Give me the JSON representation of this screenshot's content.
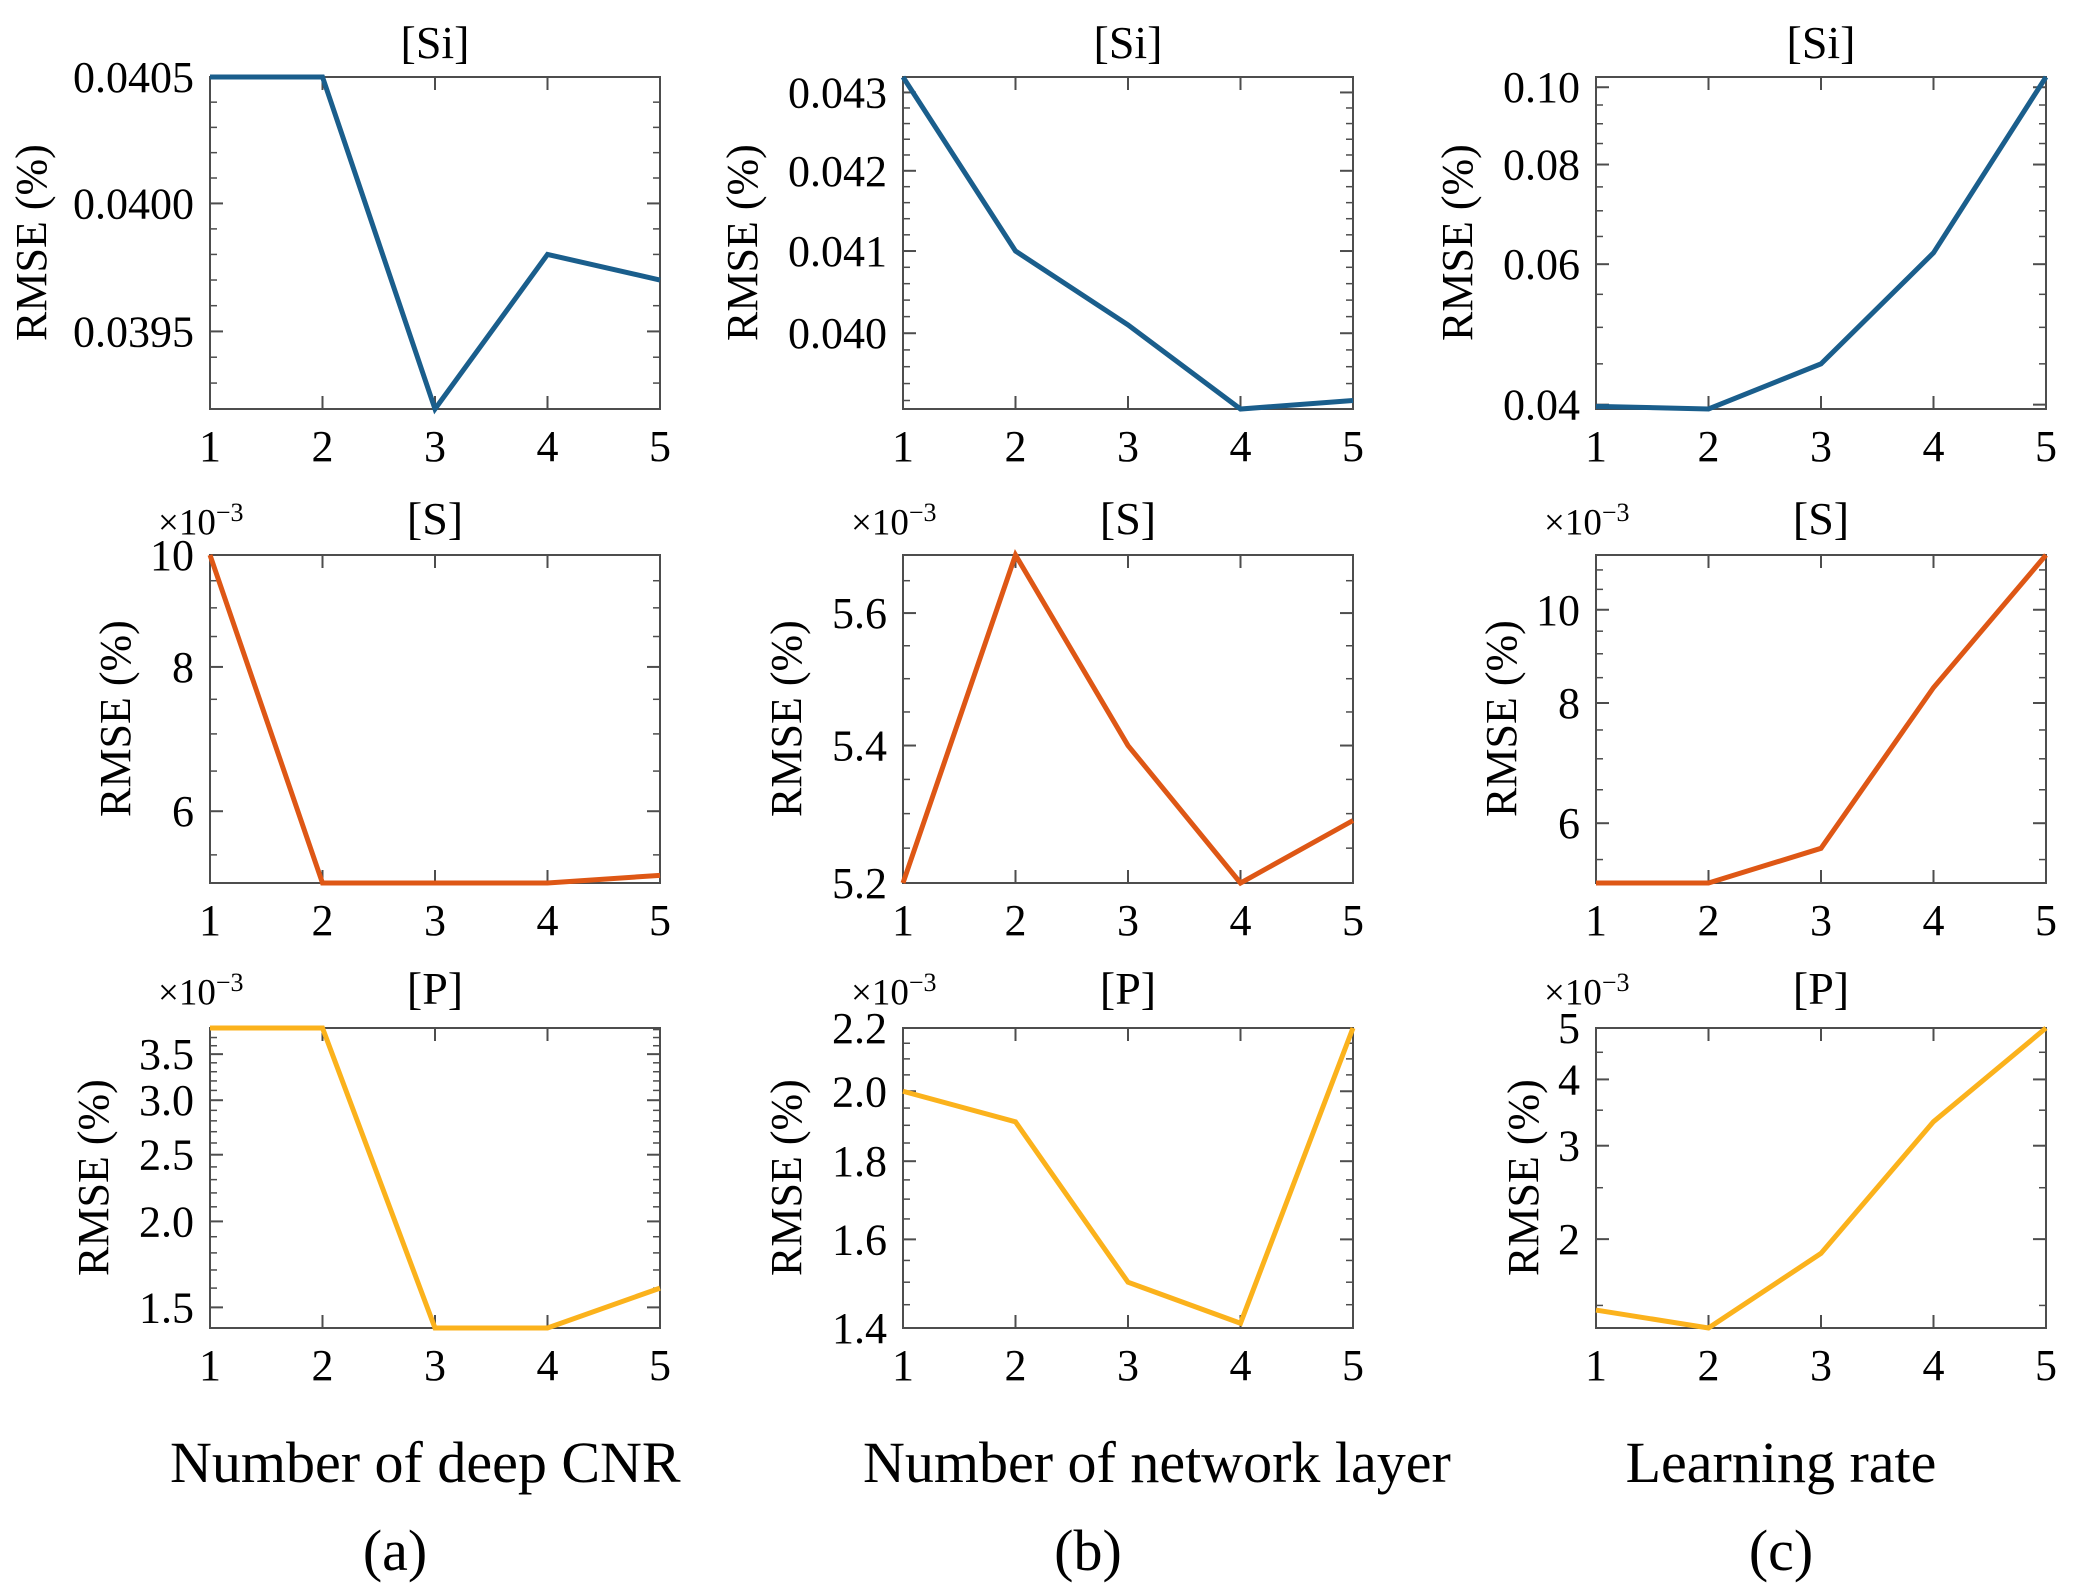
{
  "figure": {
    "ylabel": "RMSE (%)",
    "exponent": {
      "base": "×10",
      "exp": "−3"
    },
    "xticklabels": [
      "1",
      "2",
      "3",
      "4",
      "5"
    ],
    "columns": [
      {
        "xlabel": "Number of deep CNR",
        "panel": "(a)"
      },
      {
        "xlabel": "Number of network layer",
        "panel": "(b)"
      },
      {
        "xlabel": "Learning rate",
        "panel": "(c)"
      }
    ],
    "colors": {
      "blue": "#1A5E8C",
      "orange": "#DE5715",
      "yellow": "#FBB21C"
    },
    "axis_color": "#4d4d4d"
  },
  "chart_data": [
    {
      "type": "line",
      "row": 0,
      "col": 0,
      "title": "[Si]",
      "series_color": "blue",
      "yscale": "log",
      "exponent": false,
      "x": [
        1,
        2,
        3,
        4,
        5
      ],
      "y": [
        0.0405,
        0.0405,
        0.0392,
        0.0398,
        0.0397
      ],
      "ylim": [
        0.0392,
        0.0405
      ],
      "yticks": [
        0.0395,
        0.04,
        0.0405
      ],
      "ytick_labels": [
        "0.0395",
        "0.0400",
        "0.0405"
      ],
      "yminor": [
        0.0393,
        0.0394,
        0.0396,
        0.0397,
        0.0398,
        0.0399,
        0.0401,
        0.0402,
        0.0403,
        0.0404
      ]
    },
    {
      "type": "line",
      "row": 0,
      "col": 1,
      "title": "[Si]",
      "series_color": "blue",
      "yscale": "log",
      "exponent": false,
      "x": [
        1,
        2,
        3,
        4,
        5
      ],
      "y": [
        0.0432,
        0.041,
        0.0401,
        0.0391,
        0.0392
      ],
      "ylim": [
        0.0391,
        0.0432
      ],
      "yticks": [
        0.04,
        0.041,
        0.042,
        0.043
      ],
      "ytick_labels": [
        "0.040",
        "0.041",
        "0.042",
        "0.043"
      ],
      "yminor": [
        0.0392,
        0.0394,
        0.0396,
        0.0398,
        0.0402,
        0.0404,
        0.0406,
        0.0408,
        0.0412,
        0.0414,
        0.0416,
        0.0418,
        0.0422,
        0.0424,
        0.0426,
        0.0428
      ]
    },
    {
      "type": "line",
      "row": 0,
      "col": 2,
      "title": "[Si]",
      "series_color": "blue",
      "yscale": "log",
      "exponent": false,
      "x": [
        1,
        2,
        3,
        4,
        5
      ],
      "y": [
        0.0398,
        0.0395,
        0.045,
        0.062,
        0.103
      ],
      "ylim": [
        0.0395,
        0.103
      ],
      "yticks": [
        0.04,
        0.06,
        0.08,
        0.1
      ],
      "ytick_labels": [
        "0.04",
        "0.06",
        "0.08",
        "0.10"
      ],
      "yminor": [
        0.045,
        0.05,
        0.055,
        0.065,
        0.07,
        0.075,
        0.085,
        0.09,
        0.095
      ]
    },
    {
      "type": "line",
      "row": 1,
      "col": 0,
      "title": "[S]",
      "series_color": "orange",
      "yscale": "log",
      "exponent": true,
      "x": [
        1,
        2,
        3,
        4,
        5
      ],
      "y": [
        10,
        5.2,
        5.2,
        5.2,
        5.28
      ],
      "ylim": [
        5.2,
        10
      ],
      "yticks": [
        6,
        8,
        10
      ],
      "ytick_labels": [
        "6",
        "8",
        "10"
      ],
      "yminor": [
        5.5,
        6.5,
        7,
        7.5,
        8.5,
        9,
        9.5
      ]
    },
    {
      "type": "line",
      "row": 1,
      "col": 1,
      "title": "[S]",
      "series_color": "orange",
      "yscale": "log",
      "exponent": true,
      "x": [
        1,
        2,
        3,
        4,
        5
      ],
      "y": [
        5.2,
        5.69,
        5.4,
        5.2,
        5.29
      ],
      "ylim": [
        5.2,
        5.69
      ],
      "yticks": [
        5.2,
        5.4,
        5.6
      ],
      "ytick_labels": [
        "5.2",
        "5.4",
        "5.6"
      ],
      "yminor": [
        5.25,
        5.3,
        5.35,
        5.45,
        5.5,
        5.55,
        5.65
      ]
    },
    {
      "type": "line",
      "row": 1,
      "col": 2,
      "title": "[S]",
      "series_color": "orange",
      "yscale": "log",
      "exponent": true,
      "x": [
        1,
        2,
        3,
        4,
        5
      ],
      "y": [
        5.2,
        5.2,
        5.65,
        8.3,
        11.4
      ],
      "ylim": [
        5.2,
        11.4
      ],
      "yticks": [
        6,
        8,
        10
      ],
      "ytick_labels": [
        "6",
        "8",
        "10"
      ],
      "yminor": [
        5.5,
        6.5,
        7,
        7.5,
        8.5,
        9,
        9.5,
        10.5,
        11
      ]
    },
    {
      "type": "line",
      "row": 2,
      "col": 0,
      "title": "[P]",
      "series_color": "yellow",
      "yscale": "log",
      "exponent": true,
      "x": [
        1,
        2,
        3,
        4,
        5
      ],
      "y": [
        3.82,
        3.82,
        1.4,
        1.4,
        1.6
      ],
      "ylim": [
        1.4,
        3.82
      ],
      "yticks": [
        1.5,
        2,
        2.5,
        3,
        3.5
      ],
      "ytick_labels": [
        "1.5",
        "2.0",
        "2.5",
        "3.0",
        "3.5"
      ],
      "yminor": [
        1.6,
        1.7,
        1.8,
        1.9,
        2.1,
        2.2,
        2.3,
        2.4,
        2.6,
        2.7,
        2.8,
        2.9,
        3.1,
        3.2,
        3.3,
        3.4,
        3.6,
        3.7,
        3.8
      ]
    },
    {
      "type": "line",
      "row": 2,
      "col": 1,
      "title": "[P]",
      "series_color": "yellow",
      "yscale": "log",
      "exponent": true,
      "x": [
        1,
        2,
        3,
        4,
        5
      ],
      "y": [
        2,
        1.91,
        1.5,
        1.41,
        2.2
      ],
      "ylim": [
        1.4,
        2.2
      ],
      "yticks": [
        1.4,
        1.6,
        1.8,
        2,
        2.2
      ],
      "ytick_labels": [
        "1.4",
        "1.6",
        "1.8",
        "2.0",
        "2.2"
      ],
      "yminor": [
        1.45,
        1.5,
        1.55,
        1.65,
        1.7,
        1.75,
        1.85,
        1.9,
        1.95,
        2.05,
        2.1,
        2.15
      ]
    },
    {
      "type": "line",
      "row": 2,
      "col": 2,
      "title": "[P]",
      "series_color": "yellow",
      "yscale": "log",
      "exponent": true,
      "x": [
        1,
        2,
        3,
        4,
        5
      ],
      "y": [
        1.47,
        1.36,
        1.88,
        3.33,
        5
      ],
      "ylim": [
        1.36,
        5
      ],
      "yticks": [
        2,
        3,
        4,
        5
      ],
      "ytick_labels": [
        "2",
        "3",
        "4",
        "5"
      ],
      "yminor": [
        1.5,
        2.5,
        3.5,
        4.5
      ]
    }
  ]
}
